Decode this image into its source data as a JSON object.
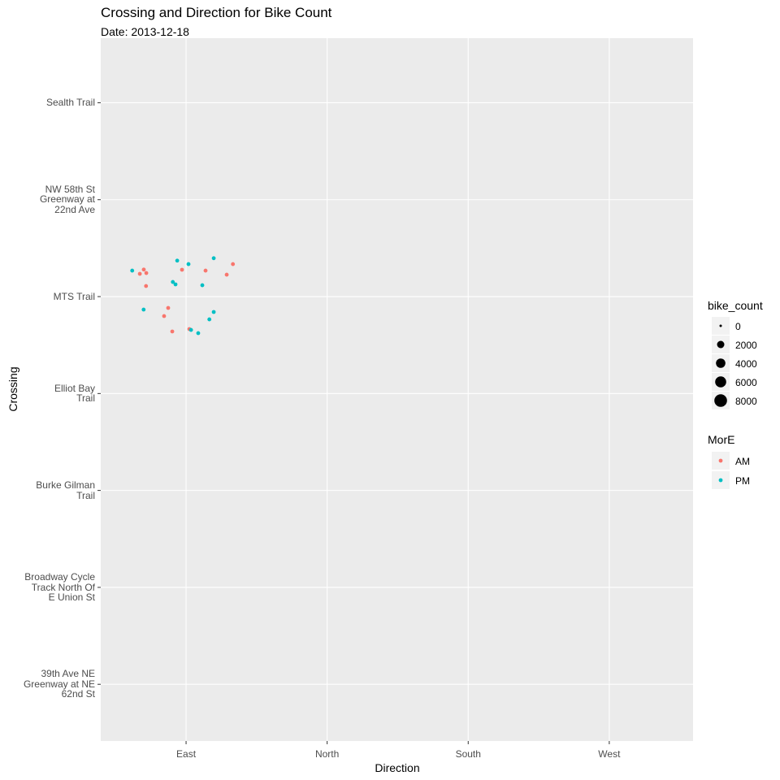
{
  "chart_data": {
    "type": "scatter",
    "title": "Crossing and Direction for Bike Count",
    "subtitle": "Date: 2013-12-18",
    "xlabel": "Direction",
    "ylabel": "Crossing",
    "x_categories": [
      "East",
      "North",
      "South",
      "West"
    ],
    "y_categories": [
      "39th Ave NE\nGreenway at NE\n62nd St",
      "Broadway Cycle\nTrack North Of\nE Union St",
      "Burke Gilman\nTrail",
      "Elliot Bay\nTrail",
      "MTS Trail",
      "NW 58th St\nGreenway at\n22nd Ave",
      "Sealth Trail"
    ],
    "xlim": [
      0.395,
      4.594
    ],
    "ylim": [
      0.415,
      7.666
    ],
    "grid": true,
    "legend_position": "right",
    "legends": [
      {
        "title": "bike_count",
        "type": "size",
        "entries": [
          "0",
          "2000",
          "4000",
          "6000",
          "8000"
        ]
      },
      {
        "title": "MorE",
        "type": "color",
        "entries": [
          "AM",
          "PM"
        ]
      }
    ],
    "colors": {
      "AM": "#F8766D",
      "PM": "#00BFC4"
    },
    "series": [
      {
        "name": "AM",
        "points": [
          [
            0.7,
            5.279
          ],
          [
            0.672,
            5.235
          ],
          [
            0.718,
            5.243
          ],
          [
            0.716,
            5.109
          ],
          [
            0.971,
            5.277
          ],
          [
            1.138,
            5.268
          ],
          [
            1.332,
            5.335
          ],
          [
            1.288,
            5.226
          ],
          [
            0.873,
            4.883
          ],
          [
            0.844,
            4.799
          ],
          [
            0.902,
            4.64
          ],
          [
            1.023,
            4.665
          ]
        ]
      },
      {
        "name": "PM",
        "points": [
          [
            0.618,
            5.268
          ],
          [
            0.937,
            5.371
          ],
          [
            0.906,
            5.151
          ],
          [
            0.925,
            5.126
          ],
          [
            1.017,
            5.335
          ],
          [
            1.196,
            5.396
          ],
          [
            1.115,
            5.117
          ],
          [
            0.699,
            4.866
          ],
          [
            1.196,
            4.841
          ],
          [
            1.165,
            4.765
          ],
          [
            1.035,
            4.656
          ],
          [
            1.086,
            4.623
          ]
        ]
      }
    ]
  }
}
